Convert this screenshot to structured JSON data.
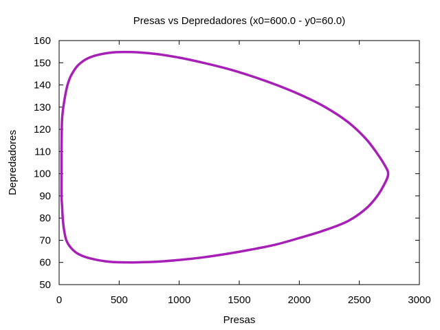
{
  "chart_data": {
    "type": "line",
    "title": "Presas vs Depredadores (x0=600.0 - y0=60.0)",
    "xlabel": "Presas",
    "ylabel": "Depredadores",
    "xlim": [
      0,
      3000
    ],
    "ylim": [
      50,
      160
    ],
    "xticks": [
      0,
      500,
      1000,
      1500,
      2000,
      2500,
      3000
    ],
    "yticks": [
      50,
      60,
      70,
      80,
      90,
      100,
      110,
      120,
      130,
      140,
      150,
      160
    ],
    "grid": false,
    "series": [
      {
        "color": "#a61fb6",
        "x": [
          600,
          420,
          260,
          160,
          100,
          60,
          40,
          30,
          25,
          20,
          20,
          20,
          22,
          25,
          35,
          50,
          70,
          100,
          160,
          260,
          420,
          600,
          800,
          1000,
          1200,
          1400,
          1600,
          1800,
          2000,
          2200,
          2400,
          2550,
          2650,
          2720,
          2740,
          2720,
          2650,
          2550,
          2400,
          2200,
          2000,
          1800,
          1600,
          1400,
          1200,
          1000,
          800,
          600
        ],
        "y": [
          60.0,
          60.3,
          61.8,
          63.8,
          66.5,
          70,
          75,
          80,
          85,
          90,
          100,
          110,
          120,
          125,
          130,
          135,
          140,
          144.3,
          149,
          152.5,
          154.5,
          154.8,
          154.0,
          152.3,
          150.0,
          147.3,
          144.0,
          140.2,
          135.8,
          130.5,
          123.5,
          116,
          109,
          103,
          100,
          96.5,
          90,
          84,
          78.5,
          74.3,
          71.0,
          68.0,
          65.8,
          63.9,
          62.3,
          61.1,
          60.3,
          60.0
        ]
      }
    ]
  }
}
